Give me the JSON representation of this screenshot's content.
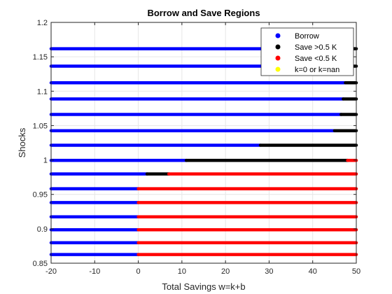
{
  "chart_data": {
    "type": "scatter",
    "title": "Borrow and Save Regions",
    "xlabel": "Total Savings w=k+b",
    "ylabel": "Shocks",
    "xlim": [
      -20,
      50
    ],
    "ylim": [
      0.85,
      1.2
    ],
    "xticks": [
      -20,
      -10,
      0,
      10,
      20,
      30,
      40,
      50
    ],
    "xtick_labels": [
      "-20",
      "-10",
      "0",
      "10",
      "20",
      "30",
      "40",
      "50"
    ],
    "yticks": [
      0.85,
      0.9,
      0.95,
      1,
      1.05,
      1.1,
      1.15,
      1.2
    ],
    "ytick_labels": [
      "0.85",
      "0.9",
      "0.95",
      "1",
      "1.05",
      "1.1",
      "1.15",
      "1.2"
    ],
    "grid": true,
    "legend_position": "top-right",
    "series": [
      {
        "name": "Borrow",
        "color": "#0000ff"
      },
      {
        "name": "Save >0.5 K",
        "color": "#000000"
      },
      {
        "name": "Save <0.5 K",
        "color": "#ff0000"
      },
      {
        "name": "k=0 or k=nan",
        "color": "#ffff00"
      }
    ],
    "rows": [
      {
        "shock": 0.8626,
        "segments": [
          [
            -20,
            0,
            0
          ],
          [
            0,
            50,
            2
          ]
        ]
      },
      {
        "shock": 0.8797,
        "segments": [
          [
            -20,
            0,
            0
          ],
          [
            0,
            50,
            2
          ]
        ]
      },
      {
        "shock": 0.8986,
        "segments": [
          [
            -20,
            0,
            0
          ],
          [
            0,
            50,
            2
          ]
        ]
      },
      {
        "shock": 0.9174,
        "segments": [
          [
            -20,
            0,
            0
          ],
          [
            0,
            50,
            2
          ]
        ]
      },
      {
        "shock": 0.9381,
        "segments": [
          [
            -20,
            0,
            0
          ],
          [
            0,
            50,
            2
          ]
        ]
      },
      {
        "shock": 0.9582,
        "segments": [
          [
            -20,
            0,
            0
          ],
          [
            0,
            50,
            2
          ]
        ]
      },
      {
        "shock": 0.9797,
        "segments": [
          [
            -20,
            2,
            0
          ],
          [
            2,
            7,
            1
          ],
          [
            7,
            50,
            2
          ]
        ]
      },
      {
        "shock": 0.9994,
        "segments": [
          [
            -20,
            11,
            0
          ],
          [
            11,
            48,
            1
          ],
          [
            48,
            50,
            2
          ]
        ]
      },
      {
        "shock": 1.0215,
        "segments": [
          [
            -20,
            28,
            0
          ],
          [
            28,
            50,
            1
          ]
        ]
      },
      {
        "shock": 1.0426,
        "segments": [
          [
            -20,
            45,
            0
          ],
          [
            45,
            50,
            1
          ]
        ]
      },
      {
        "shock": 1.0662,
        "segments": [
          [
            -20,
            46.5,
            0
          ],
          [
            46.5,
            50,
            1
          ]
        ]
      },
      {
        "shock": 1.0887,
        "segments": [
          [
            -20,
            47,
            0
          ],
          [
            47,
            50,
            1
          ]
        ]
      },
      {
        "shock": 1.1122,
        "segments": [
          [
            -20,
            47.5,
            0
          ],
          [
            47.5,
            50,
            1
          ]
        ]
      },
      {
        "shock": 1.1364,
        "segments": [
          [
            -20,
            48,
            0
          ],
          [
            48,
            50,
            1
          ]
        ]
      },
      {
        "shock": 1.1617,
        "segments": [
          [
            -20,
            48,
            0
          ],
          [
            48,
            50,
            1
          ]
        ]
      }
    ]
  }
}
